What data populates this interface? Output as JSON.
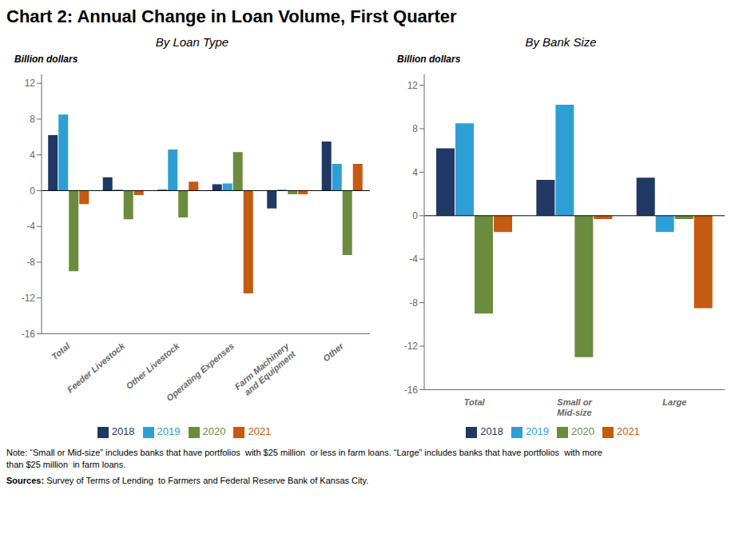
{
  "title": "Chart 2: Annual Change in Loan Volume,  First Quarter",
  "annotations": [
    "Note: “Small or Mid-size” includes banks that have portfolios  with $25 million  or less in farm loans. “Large” includes banks that have portfolios  with more\nthan $25 million  in farm loans.",
    "Sources:",
    " Survey of Terms of Lending  to Farmers and Federal Reserve Bank of Kansas City."
  ],
  "chart_data": [
    {
      "type": "bar",
      "subtitle": "By Loan Type",
      "ylabel": "Billion dollars",
      "categories": [
        "Total",
        "Feeder Livestock",
        "Other Livestock",
        "Operating Expenses",
        "Farm Machinery\nand Equipment",
        "Other"
      ],
      "series": [
        {
          "name": "2018",
          "color": "#1f3864",
          "values": [
            6.2,
            1.5,
            0.1,
            0.7,
            -2.0,
            5.5
          ]
        },
        {
          "name": "2019",
          "color": "#2e9fd4",
          "values": [
            8.5,
            0.1,
            4.6,
            0.8,
            0.1,
            3.0
          ]
        },
        {
          "name": "2020",
          "color": "#6b8c3e",
          "values": [
            -9.0,
            -3.2,
            -3.0,
            4.3,
            -0.4,
            -7.2
          ]
        },
        {
          "name": "2021",
          "color": "#c55a11",
          "values": [
            -1.5,
            -0.5,
            1.0,
            -11.5,
            -0.4,
            3.0
          ]
        }
      ],
      "ylim": [
        -16,
        13
      ],
      "yticks": [
        -16,
        -12,
        -8,
        -4,
        0,
        4,
        8,
        12
      ],
      "grid": false,
      "legend": "bottom"
    },
    {
      "type": "bar",
      "subtitle": "By Bank Size",
      "ylabel": "Billion dollars",
      "categories": [
        "Total",
        "Small or\nMid-size",
        "Large"
      ],
      "series": [
        {
          "name": "2018",
          "color": "#1f3864",
          "values": [
            6.2,
            3.3,
            3.5
          ]
        },
        {
          "name": "2019",
          "color": "#2e9fd4",
          "values": [
            8.5,
            10.2,
            -1.5
          ]
        },
        {
          "name": "2020",
          "color": "#6b8c3e",
          "values": [
            -9.0,
            -13.0,
            -0.3
          ]
        },
        {
          "name": "2021",
          "color": "#c55a11",
          "values": [
            -1.5,
            -0.3,
            -8.5
          ]
        }
      ],
      "ylim": [
        -16,
        13
      ],
      "yticks": [
        -16,
        -12,
        -8,
        -4,
        0,
        4,
        8,
        12
      ],
      "grid": false,
      "legend": "bottom"
    }
  ]
}
